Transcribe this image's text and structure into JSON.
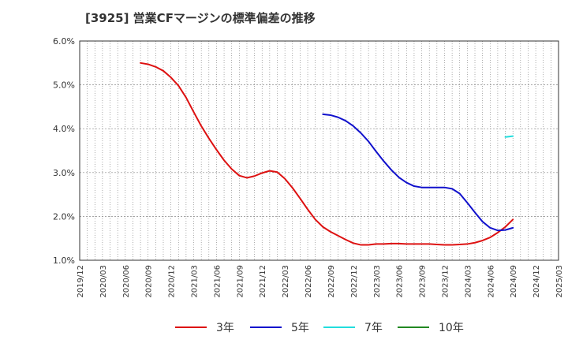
{
  "chart_data": {
    "type": "line",
    "title": "[3925]  営業CFマージンの標準偏差の推移",
    "xlabel": "",
    "ylabel": "",
    "ylim": [
      1.0,
      6.0
    ],
    "y_ticks": [
      "6.0%",
      "5.0%",
      "4.0%",
      "3.0%",
      "2.0%",
      "1.0%"
    ],
    "y_tick_values": [
      6.0,
      5.0,
      4.0,
      3.0,
      2.0,
      1.0
    ],
    "x_range": [
      "2019/12",
      "2025/03"
    ],
    "x_ticks": [
      "2019/12",
      "2020/03",
      "2020/06",
      "2020/09",
      "2020/12",
      "2021/03",
      "2021/06",
      "2021/09",
      "2021/12",
      "2022/03",
      "2022/06",
      "2022/09",
      "2022/12",
      "2023/03",
      "2023/06",
      "2023/09",
      "2023/12",
      "2024/03",
      "2024/06",
      "2024/09",
      "2024/12",
      "2025/03"
    ],
    "grid": true,
    "legend_position": "bottom",
    "series": [
      {
        "name": "3年",
        "color": "#dd1111",
        "points": [
          [
            "2020/08",
            5.5
          ],
          [
            "2020/09",
            5.47
          ],
          [
            "2020/10",
            5.41
          ],
          [
            "2020/11",
            5.32
          ],
          [
            "2020/12",
            5.17
          ],
          [
            "2021/01",
            4.98
          ],
          [
            "2021/02",
            4.71
          ],
          [
            "2021/03",
            4.38
          ],
          [
            "2021/04",
            4.06
          ],
          [
            "2021/05",
            3.78
          ],
          [
            "2021/06",
            3.52
          ],
          [
            "2021/07",
            3.28
          ],
          [
            "2021/08",
            3.08
          ],
          [
            "2021/09",
            2.93
          ],
          [
            "2021/10",
            2.88
          ],
          [
            "2021/11",
            2.92
          ],
          [
            "2021/12",
            2.99
          ],
          [
            "2022/01",
            3.04
          ],
          [
            "2022/02",
            3.01
          ],
          [
            "2022/03",
            2.86
          ],
          [
            "2022/04",
            2.65
          ],
          [
            "2022/05",
            2.41
          ],
          [
            "2022/06",
            2.16
          ],
          [
            "2022/07",
            1.93
          ],
          [
            "2022/08",
            1.76
          ],
          [
            "2022/09",
            1.65
          ],
          [
            "2022/10",
            1.56
          ],
          [
            "2022/11",
            1.47
          ],
          [
            "2022/12",
            1.39
          ],
          [
            "2023/01",
            1.35
          ],
          [
            "2023/02",
            1.35
          ],
          [
            "2023/03",
            1.37
          ],
          [
            "2023/04",
            1.37
          ],
          [
            "2023/05",
            1.38
          ],
          [
            "2023/06",
            1.38
          ],
          [
            "2023/07",
            1.37
          ],
          [
            "2023/08",
            1.37
          ],
          [
            "2023/09",
            1.37
          ],
          [
            "2023/10",
            1.37
          ],
          [
            "2023/11",
            1.36
          ],
          [
            "2023/12",
            1.35
          ],
          [
            "2024/01",
            1.35
          ],
          [
            "2024/02",
            1.36
          ],
          [
            "2024/03",
            1.37
          ],
          [
            "2024/04",
            1.4
          ],
          [
            "2024/05",
            1.45
          ],
          [
            "2024/06",
            1.52
          ],
          [
            "2024/07",
            1.63
          ],
          [
            "2024/08",
            1.76
          ],
          [
            "2024/09",
            1.93
          ]
        ]
      },
      {
        "name": "5年",
        "color": "#1111cc",
        "points": [
          [
            "2022/08",
            4.33
          ],
          [
            "2022/09",
            4.31
          ],
          [
            "2022/10",
            4.26
          ],
          [
            "2022/11",
            4.18
          ],
          [
            "2022/12",
            4.06
          ],
          [
            "2023/01",
            3.9
          ],
          [
            "2023/02",
            3.71
          ],
          [
            "2023/03",
            3.48
          ],
          [
            "2023/04",
            3.26
          ],
          [
            "2023/05",
            3.06
          ],
          [
            "2023/06",
            2.89
          ],
          [
            "2023/07",
            2.77
          ],
          [
            "2023/08",
            2.69
          ],
          [
            "2023/09",
            2.66
          ],
          [
            "2023/10",
            2.66
          ],
          [
            "2023/11",
            2.66
          ],
          [
            "2023/12",
            2.66
          ],
          [
            "2024/01",
            2.63
          ],
          [
            "2024/02",
            2.52
          ],
          [
            "2024/03",
            2.31
          ],
          [
            "2024/04",
            2.09
          ],
          [
            "2024/05",
            1.88
          ],
          [
            "2024/06",
            1.74
          ],
          [
            "2024/07",
            1.68
          ],
          [
            "2024/08",
            1.69
          ],
          [
            "2024/09",
            1.74
          ]
        ]
      },
      {
        "name": "7年",
        "color": "#22dddd",
        "points": [
          [
            "2024/08",
            3.81
          ],
          [
            "2024/09",
            3.83
          ]
        ]
      },
      {
        "name": "10年",
        "color": "#228822",
        "points": []
      }
    ]
  }
}
